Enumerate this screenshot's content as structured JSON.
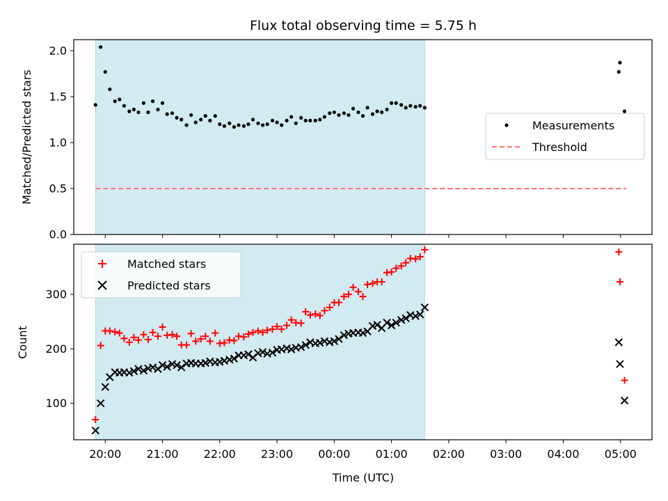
{
  "chart_data": [
    {
      "panel": "top",
      "type": "scatter",
      "title": "Flux total observing time = 5.75 h",
      "ylabel": "Matched/Predicted stars",
      "xlabel": "",
      "ylim": [
        0,
        2.12
      ],
      "yticks": [
        "0.0",
        "0.5",
        "1.0",
        "1.5",
        "2.0"
      ],
      "ytick_values": [
        0,
        0.5,
        1.0,
        1.5,
        2.0
      ],
      "xtick_values": [
        20,
        21,
        22,
        23,
        24,
        25,
        26,
        27,
        28,
        29
      ],
      "xrange_hours": [
        19.45,
        29.55
      ],
      "observing_window_hours": [
        19.83,
        25.58
      ],
      "observing_window_color": "#add8e6",
      "legend_position": "center-right",
      "series": [
        {
          "name": "Measurements",
          "color": "#000000",
          "marker": "dot",
          "points": [
            [
              19.83,
              1.41
            ],
            [
              19.92,
              2.04
            ],
            [
              20.0,
              1.77
            ],
            [
              20.08,
              1.58
            ],
            [
              20.17,
              1.45
            ],
            [
              20.25,
              1.47
            ],
            [
              20.33,
              1.4
            ],
            [
              20.42,
              1.34
            ],
            [
              20.5,
              1.36
            ],
            [
              20.58,
              1.33
            ],
            [
              20.67,
              1.43
            ],
            [
              20.75,
              1.33
            ],
            [
              20.83,
              1.45
            ],
            [
              20.92,
              1.36
            ],
            [
              21.0,
              1.43
            ],
            [
              21.08,
              1.31
            ],
            [
              21.17,
              1.32
            ],
            [
              21.25,
              1.27
            ],
            [
              21.33,
              1.25
            ],
            [
              21.42,
              1.19
            ],
            [
              21.5,
              1.3
            ],
            [
              21.58,
              1.22
            ],
            [
              21.67,
              1.25
            ],
            [
              21.75,
              1.29
            ],
            [
              21.83,
              1.24
            ],
            [
              21.92,
              1.29
            ],
            [
              22.0,
              1.2
            ],
            [
              22.08,
              1.18
            ],
            [
              22.17,
              1.21
            ],
            [
              22.25,
              1.17
            ],
            [
              22.33,
              1.19
            ],
            [
              22.42,
              1.18
            ],
            [
              22.5,
              1.2
            ],
            [
              22.58,
              1.25
            ],
            [
              22.67,
              1.21
            ],
            [
              22.75,
              1.19
            ],
            [
              22.83,
              1.2
            ],
            [
              22.92,
              1.24
            ],
            [
              23.0,
              1.22
            ],
            [
              23.08,
              1.19
            ],
            [
              23.17,
              1.24
            ],
            [
              23.25,
              1.28
            ],
            [
              23.33,
              1.21
            ],
            [
              23.42,
              1.27
            ],
            [
              23.5,
              1.24
            ],
            [
              23.58,
              1.24
            ],
            [
              23.67,
              1.24
            ],
            [
              23.75,
              1.25
            ],
            [
              23.83,
              1.28
            ],
            [
              23.92,
              1.32
            ],
            [
              24.0,
              1.33
            ],
            [
              24.08,
              1.3
            ],
            [
              24.17,
              1.32
            ],
            [
              24.25,
              1.3
            ],
            [
              24.33,
              1.37
            ],
            [
              24.42,
              1.33
            ],
            [
              24.5,
              1.29
            ],
            [
              24.58,
              1.38
            ],
            [
              24.67,
              1.31
            ],
            [
              24.75,
              1.34
            ],
            [
              24.83,
              1.33
            ],
            [
              24.92,
              1.36
            ],
            [
              25.0,
              1.43
            ],
            [
              25.08,
              1.43
            ],
            [
              25.17,
              1.41
            ],
            [
              25.25,
              1.38
            ],
            [
              25.33,
              1.4
            ],
            [
              25.42,
              1.39
            ],
            [
              25.5,
              1.4
            ],
            [
              25.58,
              1.38
            ],
            [
              28.97,
              1.77
            ],
            [
              28.99,
              1.87
            ],
            [
              29.07,
              1.34
            ]
          ]
        },
        {
          "name": "Threshold",
          "color": "#ff7070",
          "style": "dashed",
          "points": [
            [
              19.83,
              0.5
            ],
            [
              29.1,
              0.5
            ]
          ]
        }
      ]
    },
    {
      "panel": "bottom",
      "type": "scatter",
      "title": "",
      "ylabel": "Count",
      "xlabel": "Time (UTC)",
      "ylim": [
        33,
        392
      ],
      "yticks": [
        "100",
        "200",
        "300"
      ],
      "ytick_values": [
        100,
        200,
        300
      ],
      "xticks": [
        "20:00",
        "21:00",
        "22:00",
        "23:00",
        "00:00",
        "01:00",
        "02:00",
        "03:00",
        "04:00",
        "05:00"
      ],
      "xtick_values": [
        20,
        21,
        22,
        23,
        24,
        25,
        26,
        27,
        28,
        29
      ],
      "xrange_hours": [
        19.45,
        29.55
      ],
      "observing_window_hours": [
        19.83,
        25.58
      ],
      "observing_window_color": "#add8e6",
      "legend_position": "upper-left",
      "series": [
        {
          "name": "Matched stars",
          "color": "#ff0000",
          "marker": "plus",
          "points": [
            [
              19.83,
              70
            ],
            [
              19.92,
              206
            ],
            [
              20.0,
              233
            ],
            [
              20.08,
              233
            ],
            [
              20.17,
              231
            ],
            [
              20.25,
              229
            ],
            [
              20.33,
              219
            ],
            [
              20.42,
              212
            ],
            [
              20.5,
              221
            ],
            [
              20.58,
              216
            ],
            [
              20.67,
              226
            ],
            [
              20.75,
              217
            ],
            [
              20.83,
              230
            ],
            [
              20.92,
              223
            ],
            [
              21.0,
              240
            ],
            [
              21.08,
              225
            ],
            [
              21.17,
              226
            ],
            [
              21.25,
              223
            ],
            [
              21.33,
              207
            ],
            [
              21.42,
              207
            ],
            [
              21.5,
              228
            ],
            [
              21.58,
              214
            ],
            [
              21.67,
              218
            ],
            [
              21.75,
              223
            ],
            [
              21.83,
              214
            ],
            [
              21.92,
              229
            ],
            [
              22.0,
              210
            ],
            [
              22.08,
              211
            ],
            [
              22.17,
              216
            ],
            [
              22.25,
              215
            ],
            [
              22.33,
              223
            ],
            [
              22.42,
              222
            ],
            [
              22.5,
              227
            ],
            [
              22.58,
              230
            ],
            [
              22.67,
              233
            ],
            [
              22.75,
              230
            ],
            [
              22.83,
              234
            ],
            [
              22.92,
              236
            ],
            [
              23.0,
              241
            ],
            [
              23.08,
              236
            ],
            [
              23.17,
              243
            ],
            [
              23.25,
              253
            ],
            [
              23.33,
              248
            ],
            [
              23.42,
              247
            ],
            [
              23.5,
              268
            ],
            [
              23.58,
              262
            ],
            [
              23.67,
              264
            ],
            [
              23.75,
              261
            ],
            [
              23.83,
              270
            ],
            [
              23.92,
              276
            ],
            [
              24.0,
              285
            ],
            [
              24.08,
              285
            ],
            [
              24.17,
              296
            ],
            [
              24.25,
              300
            ],
            [
              24.33,
              313
            ],
            [
              24.42,
              305
            ],
            [
              24.5,
              296
            ],
            [
              24.58,
              318
            ],
            [
              24.67,
              320
            ],
            [
              24.75,
              323
            ],
            [
              24.83,
              323
            ],
            [
              24.92,
              340
            ],
            [
              25.0,
              341
            ],
            [
              25.08,
              348
            ],
            [
              25.17,
              352
            ],
            [
              25.25,
              358
            ],
            [
              25.33,
              366
            ],
            [
              25.42,
              365
            ],
            [
              25.5,
              369
            ],
            [
              25.58,
              382
            ],
            [
              28.97,
              378
            ],
            [
              28.99,
              323
            ],
            [
              29.07,
              142
            ]
          ]
        },
        {
          "name": "Predicted stars",
          "color": "#000000",
          "marker": "x",
          "points": [
            [
              19.83,
              50
            ],
            [
              19.92,
              100
            ],
            [
              20.0,
              130
            ],
            [
              20.08,
              148
            ],
            [
              20.17,
              157
            ],
            [
              20.25,
              156
            ],
            [
              20.33,
              157
            ],
            [
              20.42,
              156
            ],
            [
              20.5,
              159
            ],
            [
              20.58,
              163
            ],
            [
              20.67,
              160
            ],
            [
              20.75,
              164
            ],
            [
              20.83,
              166
            ],
            [
              20.92,
              163
            ],
            [
              21.0,
              170
            ],
            [
              21.08,
              167
            ],
            [
              21.17,
              172
            ],
            [
              21.25,
              170
            ],
            [
              21.33,
              166
            ],
            [
              21.42,
              173
            ],
            [
              21.5,
              174
            ],
            [
              21.58,
              173
            ],
            [
              21.67,
              173
            ],
            [
              21.75,
              174
            ],
            [
              21.83,
              177
            ],
            [
              21.92,
              175
            ],
            [
              22.0,
              176
            ],
            [
              22.08,
              178
            ],
            [
              22.17,
              180
            ],
            [
              22.25,
              182
            ],
            [
              22.33,
              188
            ],
            [
              22.42,
              188
            ],
            [
              22.5,
              190
            ],
            [
              22.58,
              184
            ],
            [
              22.67,
              192
            ],
            [
              22.75,
              194
            ],
            [
              22.83,
              191
            ],
            [
              22.92,
              193
            ],
            [
              23.0,
              198
            ],
            [
              23.08,
              199
            ],
            [
              23.17,
              201
            ],
            [
              23.25,
              199
            ],
            [
              23.33,
              202
            ],
            [
              23.42,
              203
            ],
            [
              23.5,
              207
            ],
            [
              23.58,
              212
            ],
            [
              23.67,
              210
            ],
            [
              23.75,
              211
            ],
            [
              23.83,
              214
            ],
            [
              23.92,
              212
            ],
            [
              24.0,
              214
            ],
            [
              24.08,
              218
            ],
            [
              24.17,
              225
            ],
            [
              24.25,
              228
            ],
            [
              24.33,
              229
            ],
            [
              24.42,
              230
            ],
            [
              24.5,
              229
            ],
            [
              24.58,
              232
            ],
            [
              24.67,
              242
            ],
            [
              24.75,
              244
            ],
            [
              24.83,
              238
            ],
            [
              24.92,
              248
            ],
            [
              25.0,
              243
            ],
            [
              25.08,
              248
            ],
            [
              25.17,
              253
            ],
            [
              25.25,
              256
            ],
            [
              25.33,
              262
            ],
            [
              25.42,
              260
            ],
            [
              25.5,
              263
            ],
            [
              25.58,
              276
            ],
            [
              28.97,
              212
            ],
            [
              28.99,
              172
            ],
            [
              29.07,
              105
            ]
          ]
        }
      ]
    }
  ]
}
